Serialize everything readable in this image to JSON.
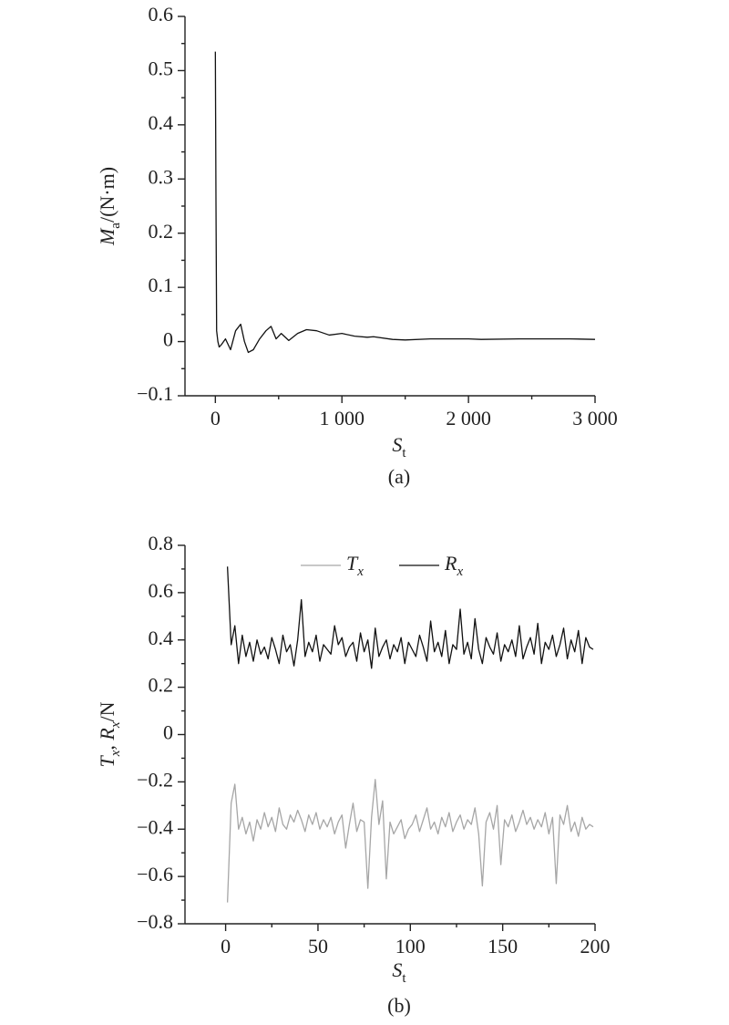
{
  "chart_data": [
    {
      "type": "line",
      "xlabel": "St",
      "ylabel": "Ma/(N·m)",
      "caption": "(a)",
      "x": [
        0,
        5,
        10,
        20,
        30,
        50,
        80,
        120,
        160,
        200,
        230,
        260,
        300,
        350,
        400,
        440,
        480,
        520,
        580,
        650,
        720,
        800,
        900,
        1000,
        1100,
        1200,
        1250,
        1400,
        1500,
        1700,
        2000,
        2100,
        2400,
        2800,
        3000
      ],
      "series": [
        {
          "name": "Ma",
          "color": "#111111",
          "values": [
            0.535,
            0.25,
            0.02,
            0.0,
            -0.01,
            -0.005,
            0.005,
            -0.015,
            0.02,
            0.032,
            0.0,
            -0.02,
            -0.015,
            0.005,
            0.02,
            0.028,
            0.005,
            0.015,
            0.002,
            0.015,
            0.022,
            0.02,
            0.012,
            0.015,
            0.01,
            0.008,
            0.009,
            0.004,
            0.003,
            0.005,
            0.005,
            0.004,
            0.005,
            0.005,
            0.004
          ]
        }
      ],
      "xlim": [
        -240,
        3000
      ],
      "xticks": [
        0,
        {
          "value": 1000,
          "label": "1 000"
        },
        {
          "value": 2000,
          "label": "2 000"
        },
        {
          "value": 3000,
          "label": "3 000"
        }
      ],
      "ylim": [
        -0.1,
        0.6
      ],
      "yticks": [
        {
          "value": -0.1,
          "label": "−0.1"
        },
        0,
        0.1,
        0.2,
        0.3,
        0.4,
        0.5,
        0.6
      ],
      "legend": false
    },
    {
      "type": "line",
      "xlabel": "St",
      "ylabel": "Tx, Rx/N",
      "caption": "(b)",
      "x": [
        1,
        3,
        5,
        7,
        9,
        11,
        13,
        15,
        17,
        19,
        21,
        23,
        25,
        27,
        29,
        31,
        33,
        35,
        37,
        39,
        41,
        43,
        45,
        47,
        49,
        51,
        53,
        55,
        57,
        59,
        61,
        63,
        65,
        67,
        69,
        71,
        73,
        75,
        77,
        79,
        81,
        83,
        85,
        87,
        89,
        91,
        93,
        95,
        97,
        99,
        101,
        103,
        105,
        107,
        109,
        111,
        113,
        115,
        117,
        119,
        121,
        123,
        125,
        127,
        129,
        131,
        133,
        135,
        137,
        139,
        141,
        143,
        145,
        147,
        149,
        151,
        153,
        155,
        157,
        159,
        161,
        163,
        165,
        167,
        169,
        171,
        173,
        175,
        177,
        179,
        181,
        183,
        185,
        187,
        189,
        191,
        193,
        195,
        197,
        199
      ],
      "series": [
        {
          "name": "Tx",
          "color": "#a6a6a6",
          "values": [
            -0.71,
            -0.29,
            -0.21,
            -0.4,
            -0.35,
            -0.42,
            -0.37,
            -0.45,
            -0.36,
            -0.4,
            -0.33,
            -0.39,
            -0.35,
            -0.41,
            -0.31,
            -0.38,
            -0.4,
            -0.34,
            -0.37,
            -0.32,
            -0.36,
            -0.41,
            -0.34,
            -0.38,
            -0.33,
            -0.4,
            -0.36,
            -0.39,
            -0.35,
            -0.42,
            -0.37,
            -0.34,
            -0.48,
            -0.38,
            -0.29,
            -0.41,
            -0.36,
            -0.37,
            -0.65,
            -0.35,
            -0.19,
            -0.38,
            -0.28,
            -0.61,
            -0.37,
            -0.42,
            -0.39,
            -0.36,
            -0.44,
            -0.4,
            -0.38,
            -0.34,
            -0.41,
            -0.36,
            -0.31,
            -0.4,
            -0.37,
            -0.42,
            -0.35,
            -0.39,
            -0.33,
            -0.41,
            -0.37,
            -0.34,
            -0.4,
            -0.36,
            -0.38,
            -0.31,
            -0.42,
            -0.64,
            -0.37,
            -0.33,
            -0.4,
            -0.3,
            -0.55,
            -0.36,
            -0.39,
            -0.34,
            -0.41,
            -0.37,
            -0.32,
            -0.38,
            -0.35,
            -0.4,
            -0.36,
            -0.39,
            -0.33,
            -0.42,
            -0.35,
            -0.63,
            -0.34,
            -0.38,
            -0.3,
            -0.41,
            -0.37,
            -0.43,
            -0.35,
            -0.4,
            -0.38,
            -0.39
          ]
        },
        {
          "name": "Rx",
          "color": "#111111",
          "values": [
            0.71,
            0.38,
            0.46,
            0.3,
            0.42,
            0.33,
            0.39,
            0.31,
            0.4,
            0.34,
            0.37,
            0.32,
            0.41,
            0.36,
            0.3,
            0.42,
            0.35,
            0.38,
            0.29,
            0.4,
            0.57,
            0.33,
            0.39,
            0.35,
            0.42,
            0.31,
            0.38,
            0.36,
            0.34,
            0.46,
            0.38,
            0.41,
            0.33,
            0.37,
            0.39,
            0.31,
            0.43,
            0.35,
            0.4,
            0.28,
            0.45,
            0.33,
            0.37,
            0.4,
            0.32,
            0.38,
            0.35,
            0.41,
            0.3,
            0.39,
            0.36,
            0.33,
            0.42,
            0.37,
            0.31,
            0.48,
            0.35,
            0.39,
            0.33,
            0.44,
            0.3,
            0.38,
            0.36,
            0.53,
            0.34,
            0.39,
            0.32,
            0.49,
            0.36,
            0.3,
            0.41,
            0.37,
            0.34,
            0.43,
            0.31,
            0.38,
            0.35,
            0.4,
            0.33,
            0.46,
            0.32,
            0.37,
            0.41,
            0.34,
            0.47,
            0.3,
            0.39,
            0.36,
            0.42,
            0.33,
            0.38,
            0.45,
            0.32,
            0.4,
            0.35,
            0.44,
            0.3,
            0.41,
            0.37,
            0.36
          ]
        }
      ],
      "xlim": [
        -22,
        200
      ],
      "xticks": [
        0,
        50,
        100,
        150,
        200
      ],
      "ylim": [
        -0.8,
        0.8
      ],
      "yticks": [
        {
          "value": -0.8,
          "label": "−0.8"
        },
        {
          "value": -0.6,
          "label": "−0.6"
        },
        {
          "value": -0.4,
          "label": "−0.4"
        },
        {
          "value": -0.2,
          "label": "−0.2"
        },
        0,
        0.2,
        0.4,
        0.6,
        0.8
      ],
      "legend": "upper center"
    }
  ]
}
